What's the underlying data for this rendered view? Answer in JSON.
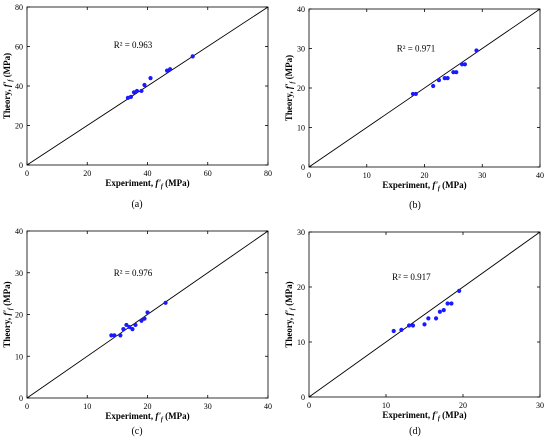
{
  "chart_data": [
    {
      "type": "scatter",
      "panel_label": "(a)",
      "xlabel": "Experiment, f'_f (MPa)",
      "ylabel": "Theory, f'_f (MPa)",
      "xlim": [
        0,
        80
      ],
      "ylim": [
        0,
        80
      ],
      "xticks": [
        0,
        20,
        40,
        60,
        80
      ],
      "yticks": [
        0,
        20,
        40,
        60,
        80
      ],
      "r2_label": "R² = 0.963",
      "reference_line": "y = x",
      "marker_color": "#1a1aff",
      "series": [
        {
          "x": [
            33.5,
            34.5,
            35.5,
            36.5,
            38,
            39,
            41,
            46.5,
            47.5,
            55
          ],
          "y": [
            34,
            34.5,
            36.8,
            37.5,
            37.5,
            40.5,
            44,
            47.8,
            48.5,
            55
          ]
        }
      ]
    },
    {
      "type": "scatter",
      "panel_label": "(b)",
      "xlabel": "Experiment, f'_f (MPa)",
      "ylabel": "Theory, f'_f (MPa)",
      "xlim": [
        0,
        40
      ],
      "ylim": [
        0,
        40
      ],
      "xticks": [
        0,
        10,
        20,
        30,
        40
      ],
      "yticks": [
        0,
        10,
        20,
        30,
        40
      ],
      "r2_label": "R² = 0.971",
      "reference_line": "y = x",
      "marker_color": "#1a1aff",
      "series": [
        {
          "x": [
            18,
            18.5,
            21.5,
            22.5,
            23.5,
            24,
            25,
            25.5,
            26.5,
            27,
            29
          ],
          "y": [
            18.5,
            18.5,
            20.5,
            22,
            22.5,
            22.5,
            24,
            24,
            26,
            26,
            29.5
          ]
        }
      ]
    },
    {
      "type": "scatter",
      "panel_label": "(c)",
      "xlabel": "Experiment, f'_f (MPa)",
      "ylabel": "Theory, f'_f (MPa)",
      "xlim": [
        0,
        40
      ],
      "ylim": [
        0,
        40
      ],
      "xticks": [
        0,
        10,
        20,
        30,
        40
      ],
      "yticks": [
        0,
        10,
        20,
        30,
        40
      ],
      "r2_label": "R² = 0.976",
      "reference_line": "y = x",
      "marker_color": "#1a1aff",
      "series": [
        {
          "x": [
            14,
            14.5,
            15.5,
            16,
            16.5,
            17,
            17.5,
            18,
            19,
            19.5,
            20,
            23
          ],
          "y": [
            15,
            15,
            15,
            16.5,
            17.5,
            17,
            16.5,
            17.5,
            18.5,
            19,
            20.5,
            22.8
          ]
        }
      ]
    },
    {
      "type": "scatter",
      "panel_label": "(d)",
      "xlabel": "Experiment, f'_f (MPa)",
      "ylabel": "Theory, f'_f (MPa)",
      "xlim": [
        0,
        30
      ],
      "ylim": [
        0,
        30
      ],
      "xticks": [
        0,
        10,
        20,
        30
      ],
      "yticks": [
        0,
        10,
        20,
        30
      ],
      "r2_label": "R² = 0.917",
      "reference_line": "y = x",
      "marker_color": "#1a1aff",
      "series": [
        {
          "x": [
            11,
            12,
            13,
            13.5,
            15,
            15.5,
            16.5,
            17,
            17.5,
            18,
            18.5,
            19.5
          ],
          "y": [
            12,
            12.2,
            13,
            13,
            13.2,
            14.3,
            14.3,
            15.5,
            15.8,
            17,
            17,
            19.3
          ]
        }
      ]
    }
  ]
}
